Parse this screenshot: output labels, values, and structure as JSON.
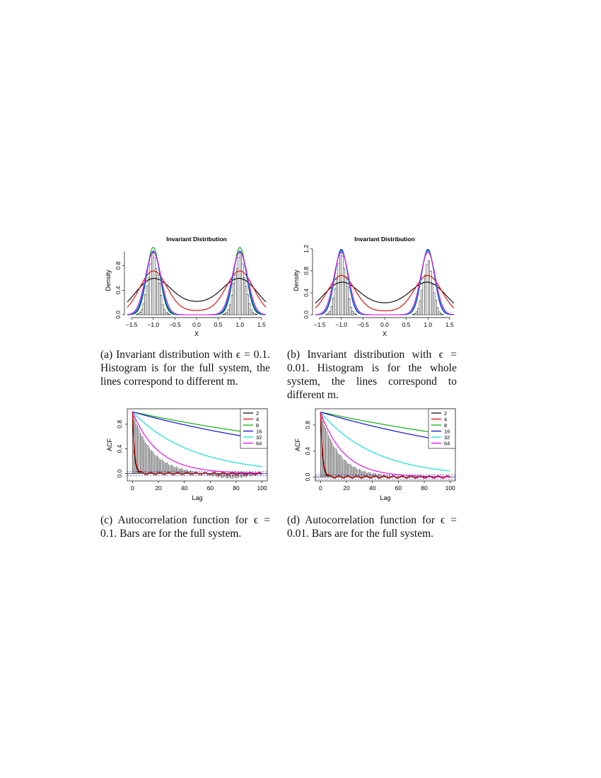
{
  "captions": {
    "a": "(a) Invariant distribution with ϵ = 0.1. Histogram is for the full system, the lines correspond to different m.",
    "b": "(b) Invariant distribution with ϵ = 0.01. Histogram is for the whole system, the lines correspond to different m.",
    "c": "(c) Autocorrelation function for ϵ = 0.1. Bars are for the full system.",
    "d": "(d) Autocorrelation function for ϵ = 0.01. Bars are for the full system."
  },
  "colors": {
    "m2": "#000000",
    "m4": "#dd0000",
    "m8": "#00aa00",
    "m16": "#0000cc",
    "m32": "#00dddd",
    "m64": "#dd00dd",
    "bars": "#000000"
  },
  "chart_data": [
    {
      "id": "a",
      "type": "histogram+line",
      "title": "Invariant Distribution",
      "xlabel": "X",
      "ylabel": "Density",
      "xlim": [
        -1.6,
        1.6
      ],
      "ylim": [
        0,
        1.12
      ],
      "xticks": [
        -1.5,
        -1.0,
        -0.5,
        0.0,
        0.5,
        1.0,
        1.5
      ],
      "xtick_labels": [
        "−1.5",
        "−1.0",
        "−0.5",
        "0.0",
        "0.5",
        "1.0",
        "1.5"
      ],
      "yticks": [
        0.0,
        0.4,
        0.8
      ],
      "ytick_labels": [
        "0.0",
        "0.4",
        "0.8"
      ],
      "histogram": {
        "bin_width": 0.04,
        "modes": [
          -1.0,
          1.0
        ],
        "peak": 1.02,
        "sigma": 0.12
      },
      "series": [
        {
          "m": "2",
          "peak": 0.58,
          "sigma": 0.42,
          "base": 0.15,
          "color": "#000000"
        },
        {
          "m": "4",
          "peak": 0.71,
          "sigma": 0.32,
          "base": 0.06,
          "color": "#dd0000"
        },
        {
          "m": "8",
          "peak": 1.1,
          "sigma": 0.15,
          "base": 0.0,
          "color": "#00aa00"
        },
        {
          "m": "16",
          "peak": 1.04,
          "sigma": 0.16,
          "base": 0.0,
          "color": "#0000cc"
        },
        {
          "m": "32",
          "peak": 1.03,
          "sigma": 0.17,
          "base": 0.0,
          "color": "#00dddd"
        },
        {
          "m": "64",
          "peak": 1.02,
          "sigma": 0.18,
          "base": 0.0,
          "color": "#dd00dd"
        }
      ]
    },
    {
      "id": "b",
      "type": "histogram+line",
      "title": "Invariant Distribution",
      "xlabel": "X",
      "ylabel": "Density",
      "xlim": [
        -1.6,
        1.6
      ],
      "ylim": [
        0,
        1.25
      ],
      "xticks": [
        -1.5,
        -1.0,
        -0.5,
        0.0,
        0.5,
        1.0,
        1.5
      ],
      "xtick_labels": [
        "−1.5",
        "−1.0",
        "−0.5",
        "0.0",
        "0.5",
        "1.0",
        "1.5"
      ],
      "yticks": [
        0.0,
        0.4,
        0.8,
        1.2
      ],
      "ytick_labels": [
        "0.0",
        "0.4",
        "0.8",
        "1.2"
      ],
      "histogram": {
        "bin_width": 0.04,
        "modes": [
          -1.0,
          1.0
        ],
        "peak_left": 1.17,
        "peak_right": 1.0,
        "sigma": 0.11
      },
      "series": [
        {
          "m": "2",
          "peak": 0.58,
          "sigma": 0.42,
          "base": 0.15,
          "color": "#000000"
        },
        {
          "m": "4",
          "peak": 0.71,
          "sigma": 0.32,
          "base": 0.06,
          "color": "#dd0000"
        },
        {
          "m": "8",
          "peak": 1.18,
          "sigma": 0.15,
          "base": 0.0,
          "color": "#00aa00"
        },
        {
          "m": "16",
          "peak": 1.19,
          "sigma": 0.15,
          "base": 0.0,
          "color": "#0000cc"
        },
        {
          "m": "32",
          "peak": 1.16,
          "sigma": 0.16,
          "base": 0.0,
          "color": "#00dddd"
        },
        {
          "m": "64",
          "peak": 1.14,
          "sigma": 0.17,
          "base": 0.0,
          "color": "#dd00dd"
        }
      ]
    },
    {
      "id": "c",
      "type": "acf",
      "title": "",
      "xlabel": "Lag",
      "ylabel": "ACF",
      "xlim": [
        -4,
        104
      ],
      "ylim": [
        -0.12,
        1.05
      ],
      "xticks": [
        0,
        20,
        40,
        60,
        80,
        100
      ],
      "yticks": [
        0.0,
        0.4,
        0.8
      ],
      "ytick_labels": [
        "0.0",
        "0.4",
        "0.8"
      ],
      "confidence_band": [
        -0.03,
        0.03
      ],
      "legend": {
        "position": "top-right",
        "entries": [
          "2",
          "4",
          "8",
          "16",
          "32",
          "64"
        ]
      },
      "bars": {
        "lags": [
          0,
          100
        ],
        "decay": 15,
        "negative_dip_center": 75,
        "negative_dip_depth": -0.08
      },
      "series": [
        {
          "m": "2",
          "decay": 1.4,
          "color": "#000000"
        },
        {
          "m": "4",
          "decay": 1.6,
          "color": "#dd0000"
        },
        {
          "m": "8",
          "decay": 220,
          "color": "#00aa00"
        },
        {
          "m": "16",
          "decay": 170,
          "color": "#0000cc"
        },
        {
          "m": "32",
          "decay": 46,
          "color": "#00dddd"
        },
        {
          "m": "64",
          "decay": 20,
          "color": "#dd00dd"
        }
      ]
    },
    {
      "id": "d",
      "type": "acf",
      "title": "",
      "xlabel": "Lag",
      "ylabel": "ACF",
      "xlim": [
        -4,
        104
      ],
      "ylim": [
        -0.06,
        1.05
      ],
      "xticks": [
        0,
        20,
        40,
        60,
        80,
        100
      ],
      "yticks": [
        0.0,
        0.4,
        0.8
      ],
      "ytick_labels": [
        "0.0",
        "0.4",
        "0.8"
      ],
      "confidence_band": [
        -0.03,
        0.03
      ],
      "legend": {
        "position": "top-right",
        "entries": [
          "2",
          "4",
          "8",
          "16",
          "32",
          "64"
        ]
      },
      "bars": {
        "lags": [
          0,
          100
        ],
        "decay": 14
      },
      "series": [
        {
          "m": "2",
          "decay": 1.4,
          "color": "#000000"
        },
        {
          "m": "4",
          "decay": 1.6,
          "color": "#dd0000"
        },
        {
          "m": "8",
          "decay": 230,
          "color": "#00aa00"
        },
        {
          "m": "16",
          "decay": 165,
          "color": "#0000cc"
        },
        {
          "m": "32",
          "decay": 42,
          "color": "#00dddd"
        },
        {
          "m": "64",
          "decay": 18,
          "color": "#dd00dd"
        }
      ]
    }
  ]
}
